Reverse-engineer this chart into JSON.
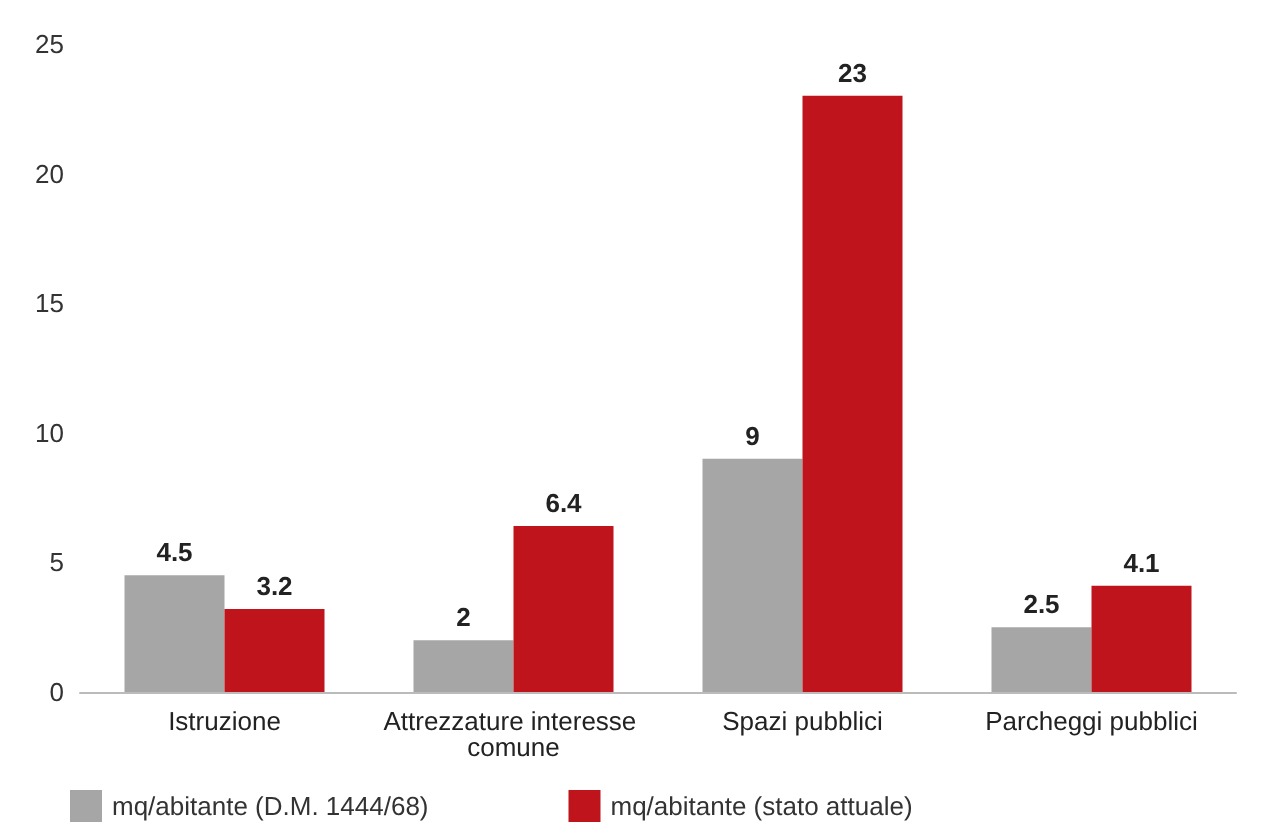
{
  "chart_data": {
    "type": "bar",
    "categories": [
      "Istruzione",
      "Attrezzature interesse comune",
      "Spazi pubblici",
      "Parcheggi pubblici"
    ],
    "series": [
      {
        "name": "mq/abitante (D.M. 1444/68)",
        "color": "#a6a6a6",
        "values": [
          4.5,
          2,
          9,
          2.5
        ]
      },
      {
        "name": "mq/abitante (stato attuale)",
        "color": "#c0141c",
        "values": [
          3.2,
          6.4,
          23,
          4.1
        ]
      }
    ],
    "ylim": [
      0,
      25
    ],
    "yticks": [
      0,
      5,
      10,
      15,
      20,
      25
    ],
    "data_labels": true,
    "legend": "bottom"
  }
}
